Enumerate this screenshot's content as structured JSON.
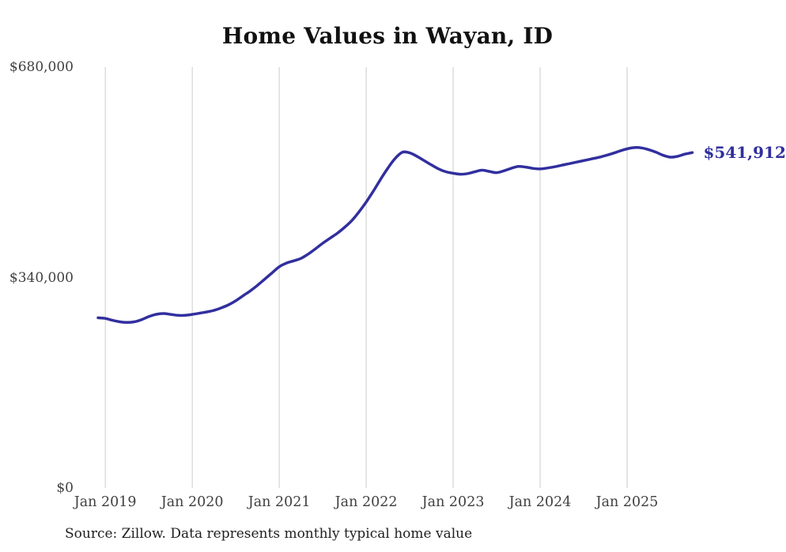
{
  "page": {
    "background_color": "#ffffff"
  },
  "footer": {
    "source_note": "Source: Zillow. Data represents monthly typical home value"
  },
  "chart_data": {
    "type": "line",
    "title": "Home Values in Wayan, ID",
    "xlabel": "",
    "ylabel": "",
    "ylim": [
      0,
      680000
    ],
    "grid": "vertical-only",
    "gridline_color": "#cccccc",
    "legend": "none",
    "end_label": "$541,912",
    "end_value": 541912,
    "y_ticks": [
      {
        "label": "$680,000",
        "value": 680000
      },
      {
        "label": "$340,000",
        "value": 340000
      },
      {
        "label": "$0",
        "value": 0
      }
    ],
    "x_ticks": [
      {
        "label": "Jan 2019",
        "month_index": 1
      },
      {
        "label": "Jan 2020",
        "month_index": 13
      },
      {
        "label": "Jan 2021",
        "month_index": 25
      },
      {
        "label": "Jan 2022",
        "month_index": 37
      },
      {
        "label": "Jan 2023",
        "month_index": 49
      },
      {
        "label": "Jan 2024",
        "month_index": 61
      },
      {
        "label": "Jan 2025",
        "month_index": 73
      }
    ],
    "series": [
      {
        "name": "Monthly typical home value",
        "color": "#312f9e",
        "stroke_width": 3.5,
        "x": [
          "Dec 2018",
          "Jan 2019",
          "Feb 2019",
          "Mar 2019",
          "Apr 2019",
          "May 2019",
          "Jun 2019",
          "Jul 2019",
          "Aug 2019",
          "Sep 2019",
          "Oct 2019",
          "Nov 2019",
          "Dec 2019",
          "Jan 2020",
          "Feb 2020",
          "Mar 2020",
          "Apr 2020",
          "May 2020",
          "Jun 2020",
          "Jul 2020",
          "Aug 2020",
          "Sep 2020",
          "Oct 2020",
          "Nov 2020",
          "Dec 2020",
          "Jan 2021",
          "Feb 2021",
          "Mar 2021",
          "Apr 2021",
          "May 2021",
          "Jun 2021",
          "Jul 2021",
          "Aug 2021",
          "Sep 2021",
          "Oct 2021",
          "Nov 2021",
          "Dec 2021",
          "Jan 2022",
          "Feb 2022",
          "Mar 2022",
          "Apr 2022",
          "May 2022",
          "Jun 2022",
          "Jul 2022",
          "Aug 2022",
          "Sep 2022",
          "Oct 2022",
          "Nov 2022",
          "Dec 2022",
          "Jan 2023",
          "Feb 2023",
          "Mar 2023",
          "Apr 2023",
          "May 2023",
          "Jun 2023",
          "Jul 2023",
          "Aug 2023",
          "Sep 2023",
          "Oct 2023",
          "Nov 2023",
          "Dec 2023",
          "Jan 2024",
          "Feb 2024",
          "Mar 2024",
          "Apr 2024",
          "May 2024",
          "Jun 2024",
          "Jul 2024",
          "Aug 2024",
          "Sep 2024",
          "Oct 2024",
          "Nov 2024",
          "Dec 2024",
          "Jan 2025",
          "Feb 2025",
          "Mar 2025",
          "Apr 2025",
          "May 2025",
          "Jun 2025",
          "Jul 2025",
          "Aug 2025",
          "Sep 2025",
          "Oct 2025"
        ],
        "values": [
          275000,
          274000,
          271000,
          268500,
          267500,
          268500,
          272000,
          277000,
          280500,
          282000,
          280500,
          279000,
          279000,
          280500,
          282500,
          284500,
          287000,
          291000,
          296000,
          302500,
          310500,
          318500,
          327500,
          337500,
          347500,
          357500,
          363500,
          367000,
          371000,
          378000,
          386500,
          395500,
          403500,
          411500,
          421000,
          432000,
          446000,
          462000,
          480000,
          499000,
          517000,
          532500,
          542500,
          541500,
          536000,
          529000,
          522000,
          515500,
          511000,
          508500,
          507000,
          508000,
          511000,
          513500,
          511500,
          509500,
          512500,
          516500,
          519500,
          518500,
          516500,
          515500,
          517000,
          519000,
          521500,
          524000,
          526500,
          529000,
          531500,
          534000,
          537000,
          540500,
          544500,
          548000,
          550000,
          549500,
          546500,
          542500,
          537500,
          534500,
          536000,
          539500,
          541912
        ]
      }
    ],
    "layout": {
      "plot_left": 124,
      "plot_right": 875.5,
      "plot_top": 85,
      "plot_bottom": 618,
      "x_label_top_offset": 7,
      "end_label_x_offset": 14
    },
    "text_colors": {
      "title": "#111111",
      "tick_labels": "#3f3f3f",
      "source": "#1f1f1f"
    }
  }
}
